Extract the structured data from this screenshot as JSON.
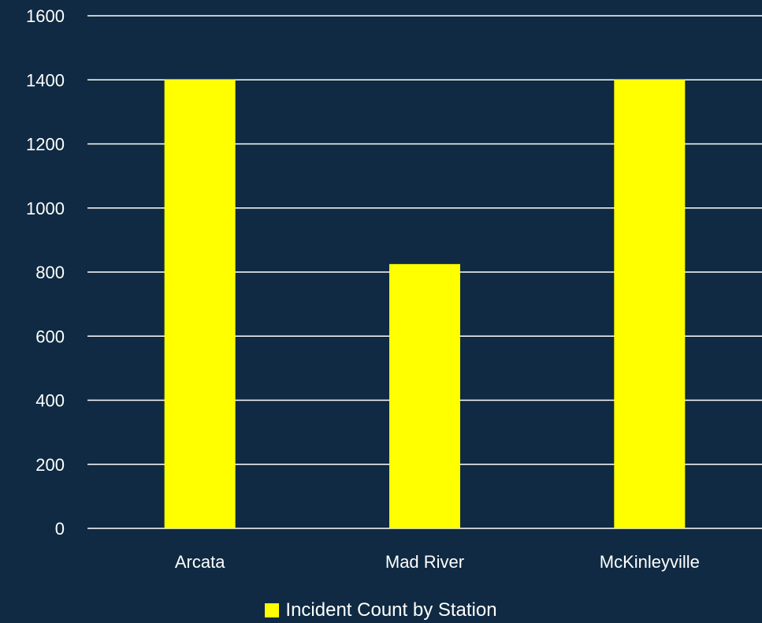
{
  "chart_data": {
    "type": "bar",
    "categories": [
      "Arcata",
      "Mad River",
      "McKinleyville"
    ],
    "series": [
      {
        "name": "Incident Count by Station",
        "values": [
          1400,
          825,
          1400
        ]
      }
    ],
    "ylim": [
      0,
      1600
    ],
    "yticks": [
      0,
      200,
      400,
      600,
      800,
      1000,
      1200,
      1400,
      1600
    ],
    "grid": true,
    "legend_position": "bottom"
  },
  "colors": {
    "background": "#0f2a42",
    "bar": "#ffff00",
    "grid": "#ffffff",
    "text": "#ffffff"
  }
}
